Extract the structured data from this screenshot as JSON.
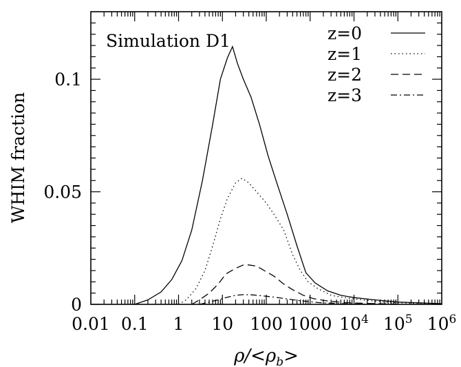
{
  "chart_data": {
    "type": "line",
    "annotation": "Simulation D1",
    "xlabel": {
      "main": "ρ/<ρ",
      "sub": "b",
      "close": ">"
    },
    "ylabel": "WHIM fraction",
    "x_scale": "log",
    "xlim": [
      0.01,
      1000000
    ],
    "ylim": [
      0,
      0.13
    ],
    "x_tick_labels": [
      {
        "value": 0.01,
        "label": "0.01"
      },
      {
        "value": 0.1,
        "label": "0.1"
      },
      {
        "value": 1,
        "label": "1"
      },
      {
        "value": 10,
        "label": "10"
      },
      {
        "value": 100,
        "label": "100"
      },
      {
        "value": 1000,
        "label": "1000"
      },
      {
        "value": 10000,
        "base": "10",
        "exp": "4"
      },
      {
        "value": 100000,
        "base": "10",
        "exp": "5"
      },
      {
        "value": 1000000,
        "base": "10",
        "exp": "6"
      }
    ],
    "y_tick_labels": [
      {
        "value": 0,
        "label": "0"
      },
      {
        "value": 0.05,
        "label": "0.05"
      },
      {
        "value": 0.1,
        "label": "0.1"
      }
    ],
    "legend_position": "top-right",
    "series": [
      {
        "name": "z=0",
        "dash": "solid",
        "x": [
          0.1,
          0.2,
          0.4,
          0.7,
          1.2,
          2,
          3.5,
          6,
          9,
          13,
          17,
          22,
          30,
          45,
          70,
          110,
          180,
          300,
          500,
          800,
          1300,
          2500,
          5000,
          10000,
          30000,
          100000,
          1000000
        ],
        "y": [
          0,
          0.002,
          0.0055,
          0.011,
          0.0195,
          0.033,
          0.055,
          0.08,
          0.1,
          0.1095,
          0.1145,
          0.107,
          0.1,
          0.092,
          0.08,
          0.066,
          0.053,
          0.04,
          0.026,
          0.014,
          0.0095,
          0.006,
          0.004,
          0.003,
          0.002,
          0.001,
          0.0003
        ]
      },
      {
        "name": "z=1",
        "dash": "dotted",
        "x": [
          1,
          1.5,
          2.5,
          4,
          6,
          9,
          13,
          20,
          28,
          40,
          60,
          100,
          150,
          250,
          400,
          600,
          900,
          1500,
          3000,
          6000,
          15000,
          50000,
          200000,
          1000000
        ],
        "y": [
          0,
          0.002,
          0.007,
          0.015,
          0.026,
          0.038,
          0.047,
          0.054,
          0.056,
          0.054,
          0.05,
          0.045,
          0.04,
          0.033,
          0.022,
          0.015,
          0.01,
          0.007,
          0.004,
          0.003,
          0.002,
          0.001,
          0.0005,
          0.0002
        ]
      },
      {
        "name": "z=2",
        "dash": "dashed",
        "x": [
          2,
          3,
          5,
          8,
          12,
          20,
          30,
          40,
          60,
          90,
          150,
          250,
          400,
          700,
          1200,
          2500,
          6000,
          20000,
          100000
        ],
        "y": [
          0,
          0.002,
          0.005,
          0.009,
          0.0135,
          0.016,
          0.0175,
          0.0175,
          0.017,
          0.015,
          0.0125,
          0.009,
          0.0065,
          0.004,
          0.0025,
          0.0015,
          0.0008,
          0.0004,
          0.0001
        ]
      },
      {
        "name": "z=3",
        "dash": "dashdot",
        "x": [
          3,
          5,
          8,
          12,
          20,
          30,
          50,
          80,
          150,
          300,
          600,
          1500,
          5000,
          20000
        ],
        "y": [
          0,
          0.001,
          0.002,
          0.003,
          0.004,
          0.0043,
          0.0042,
          0.0038,
          0.0032,
          0.0024,
          0.0016,
          0.0008,
          0.0003,
          0.0001
        ]
      }
    ]
  }
}
